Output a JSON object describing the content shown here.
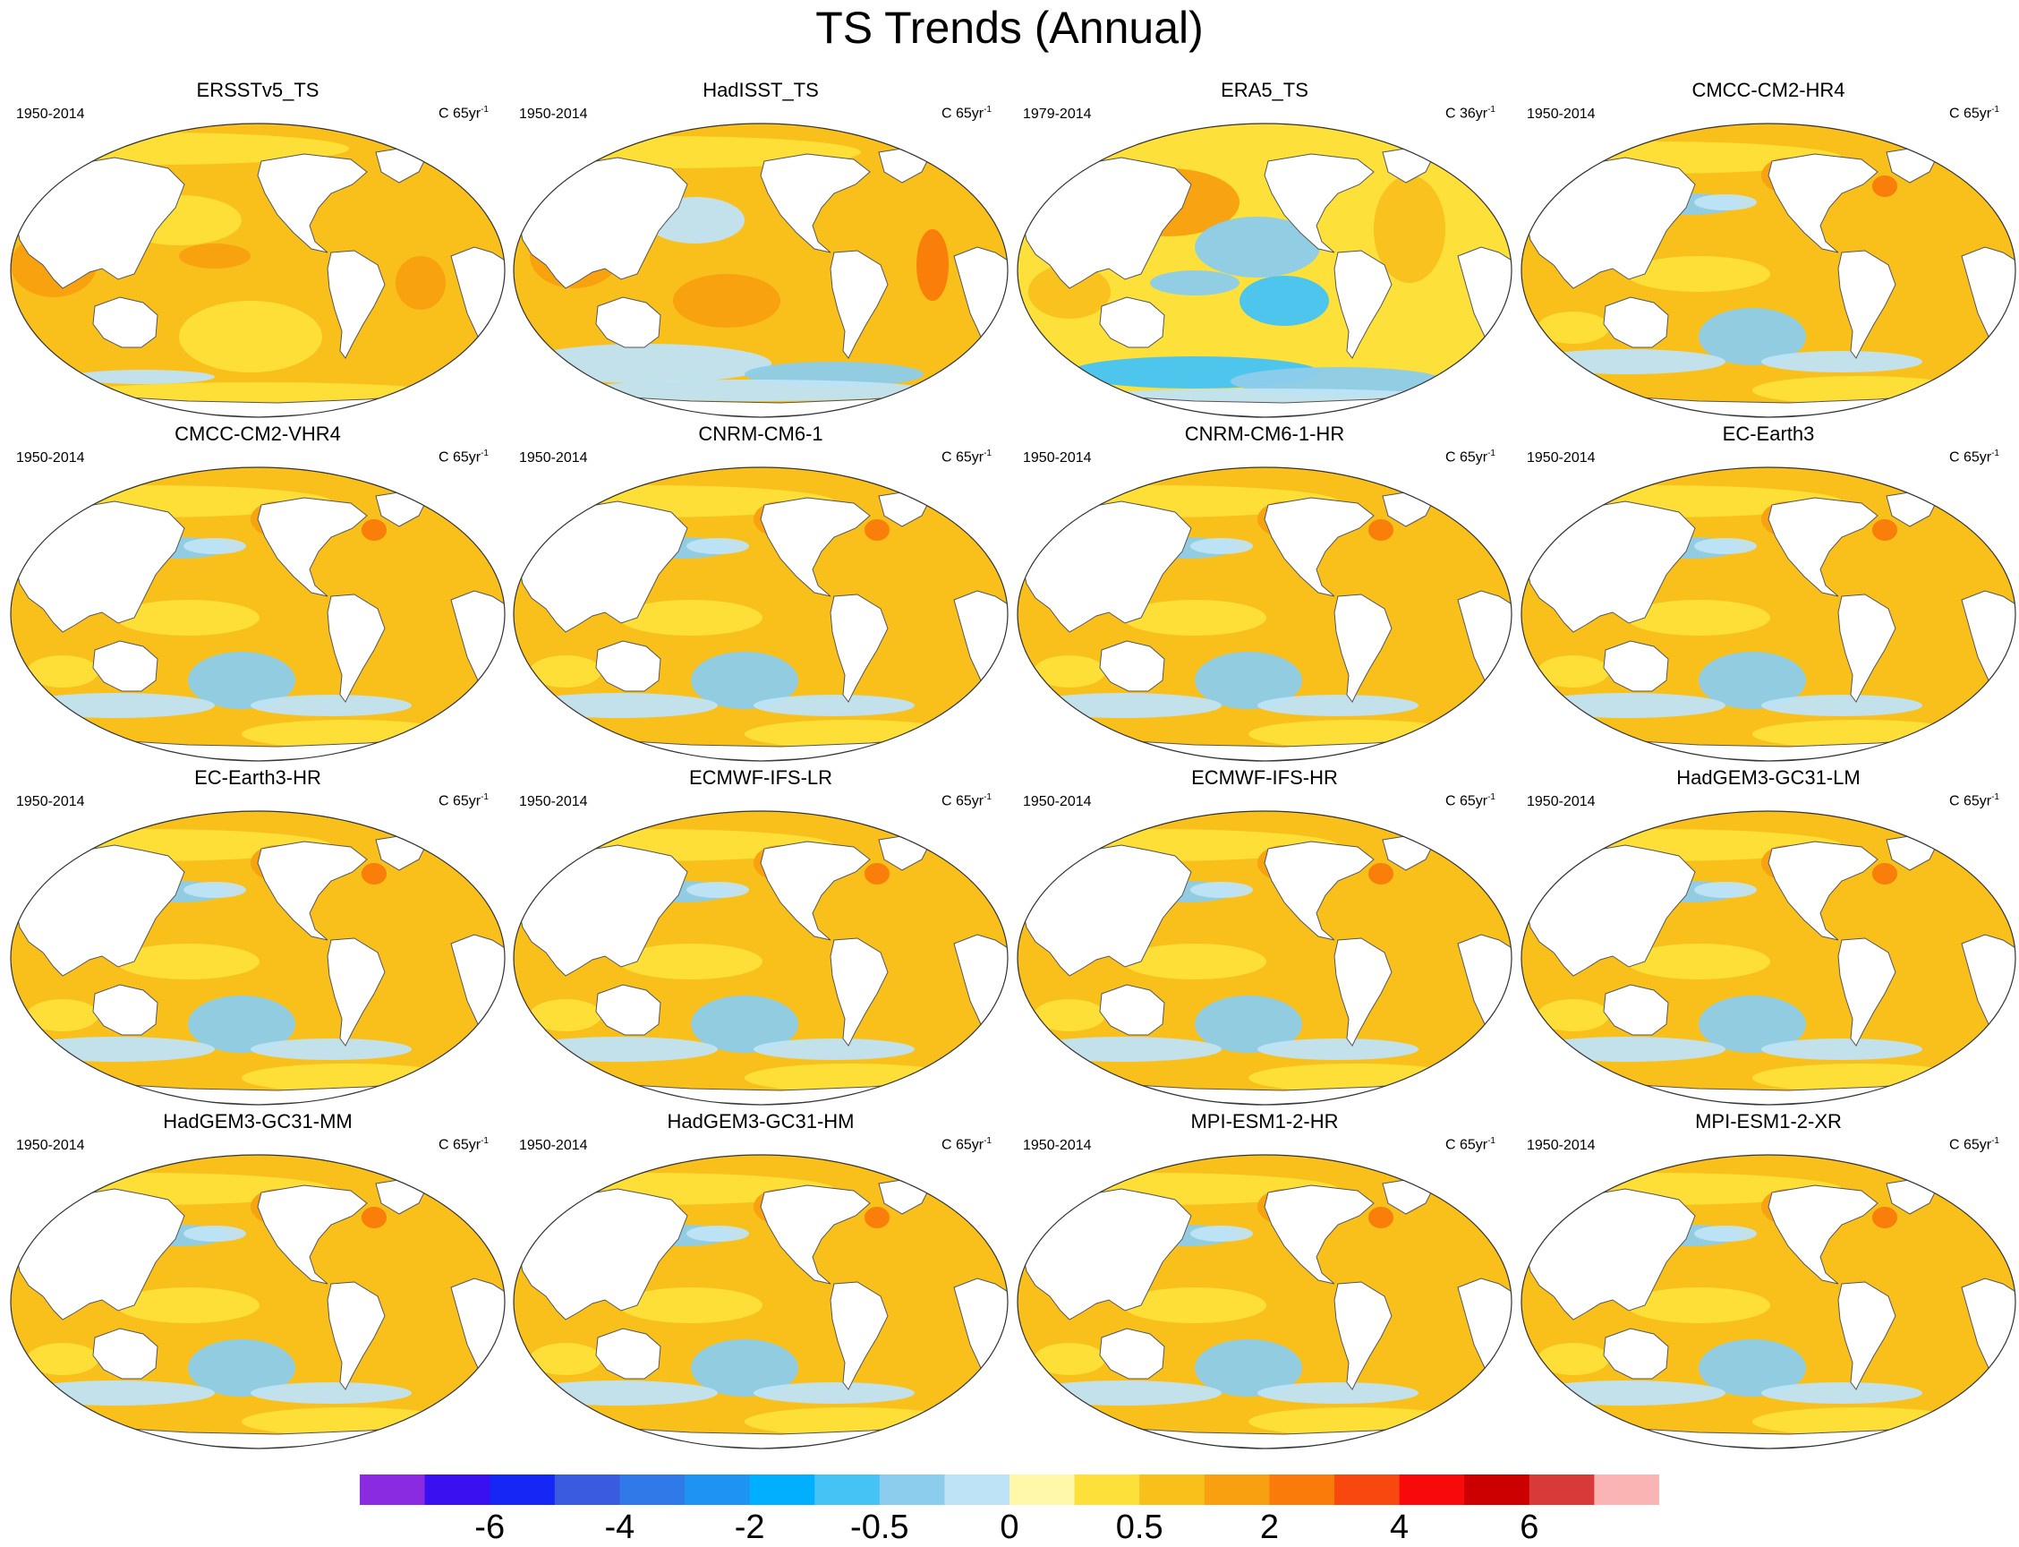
{
  "title": "TS Trends (Annual)",
  "panels": [
    {
      "name": "ERSSTv5_TS",
      "period": "1950-2014",
      "units": "C 65yr",
      "exp": "-1",
      "style": "ersst"
    },
    {
      "name": "HadISST_TS",
      "period": "1950-2014",
      "units": "C 65yr",
      "exp": "-1",
      "style": "hadisst"
    },
    {
      "name": "ERA5_TS",
      "period": "1979-2014",
      "units": "C 36yr",
      "exp": "-1",
      "style": "era5"
    },
    {
      "name": "CMCC-CM2-HR4",
      "period": "1950-2014",
      "units": "C 65yr",
      "exp": "-1",
      "style": "model"
    },
    {
      "name": "CMCC-CM2-VHR4",
      "period": "1950-2014",
      "units": "C 65yr",
      "exp": "-1",
      "style": "model"
    },
    {
      "name": "CNRM-CM6-1",
      "period": "1950-2014",
      "units": "C 65yr",
      "exp": "-1",
      "style": "model"
    },
    {
      "name": "CNRM-CM6-1-HR",
      "period": "1950-2014",
      "units": "C 65yr",
      "exp": "-1",
      "style": "model"
    },
    {
      "name": "EC-Earth3",
      "period": "1950-2014",
      "units": "C 65yr",
      "exp": "-1",
      "style": "model"
    },
    {
      "name": "EC-Earth3-HR",
      "period": "1950-2014",
      "units": "C 65yr",
      "exp": "-1",
      "style": "model"
    },
    {
      "name": "ECMWF-IFS-LR",
      "period": "1950-2014",
      "units": "C 65yr",
      "exp": "-1",
      "style": "model"
    },
    {
      "name": "ECMWF-IFS-HR",
      "period": "1950-2014",
      "units": "C 65yr",
      "exp": "-1",
      "style": "model"
    },
    {
      "name": "HadGEM3-GC31-LM",
      "period": "1950-2014",
      "units": "C 65yr",
      "exp": "-1",
      "style": "model"
    },
    {
      "name": "HadGEM3-GC31-MM",
      "period": "1950-2014",
      "units": "C 65yr",
      "exp": "-1",
      "style": "model"
    },
    {
      "name": "HadGEM3-GC31-HM",
      "period": "1950-2014",
      "units": "C 65yr",
      "exp": "-1",
      "style": "model"
    },
    {
      "name": "MPI-ESM1-2-HR",
      "period": "1950-2014",
      "units": "C 65yr",
      "exp": "-1",
      "style": "model"
    },
    {
      "name": "MPI-ESM1-2-XR",
      "period": "1950-2014",
      "units": "C 65yr",
      "exp": "-1",
      "style": "model"
    }
  ],
  "colorbar": {
    "colors": [
      "#8a2be2",
      "#3a10f0",
      "#1626f5",
      "#3a5ae0",
      "#2f7ae8",
      "#1f93f2",
      "#00b0ff",
      "#45c3f5",
      "#8cccec",
      "#bfe3f6",
      "#fff8a8",
      "#fde03a",
      "#f9c01c",
      "#f8a010",
      "#fa7a0a",
      "#f84810",
      "#f80a0a",
      "#cc0000",
      "#d83a3a",
      "#fab4b4"
    ],
    "labels": [
      {
        "text": "-6",
        "boundary": 2
      },
      {
        "text": "-4",
        "boundary": 4
      },
      {
        "text": "-2",
        "boundary": 6
      },
      {
        "text": "-0.5",
        "boundary": 8
      },
      {
        "text": "0",
        "boundary": 10
      },
      {
        "text": "0.5",
        "boundary": 12
      },
      {
        "text": "2",
        "boundary": 14
      },
      {
        "text": "4",
        "boundary": 16
      },
      {
        "text": "6",
        "boundary": 18
      }
    ]
  }
}
